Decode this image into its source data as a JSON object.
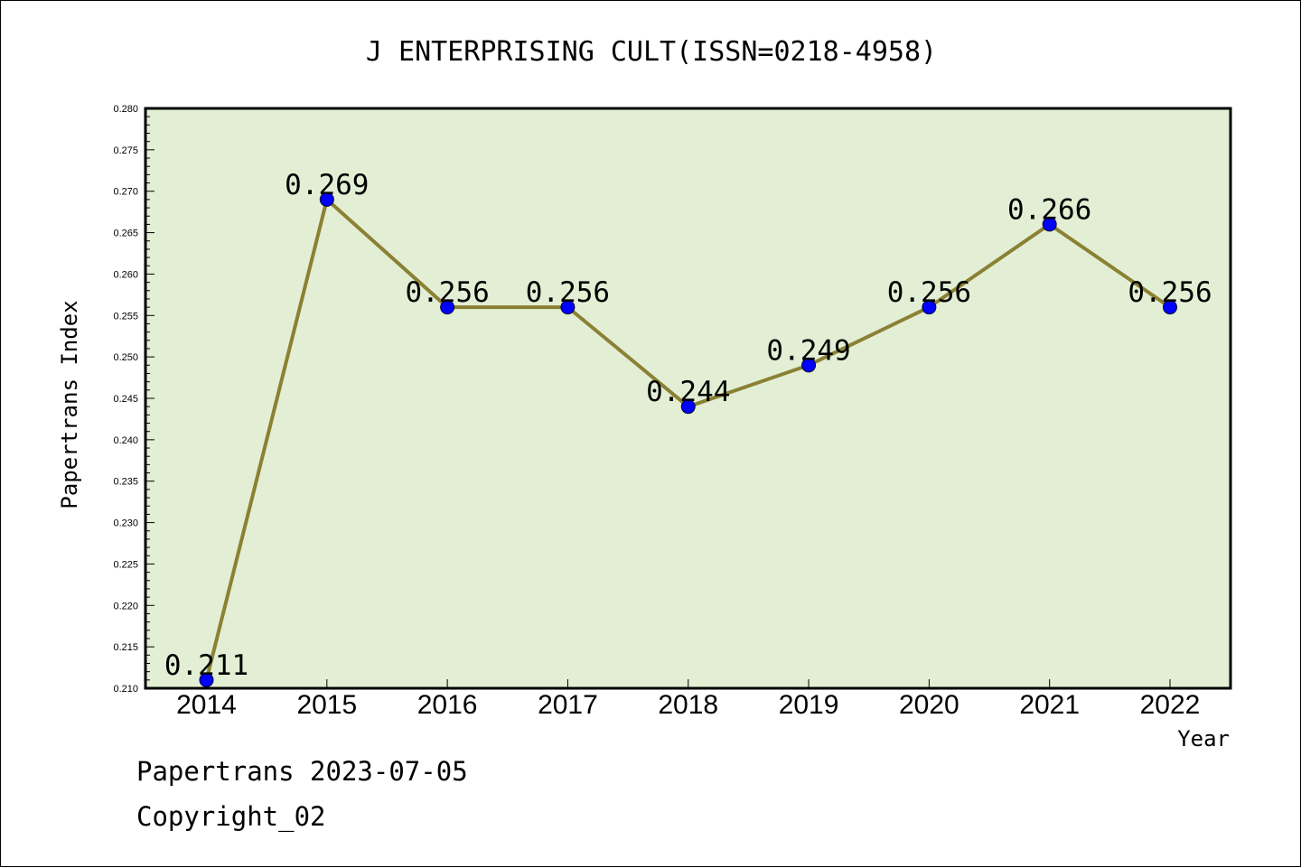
{
  "chart_data": {
    "type": "line",
    "title": "J ENTERPRISING CULT(ISSN=0218-4958)",
    "xlabel": "Year",
    "ylabel": "Papertrans Index",
    "categories": [
      "2014",
      "2015",
      "2016",
      "2017",
      "2018",
      "2019",
      "2020",
      "2021",
      "2022"
    ],
    "values": [
      0.211,
      0.269,
      0.256,
      0.256,
      0.244,
      0.249,
      0.256,
      0.266,
      0.256
    ],
    "data_labels": [
      "0.211",
      "0.269",
      "0.256",
      "0.256",
      "0.244",
      "0.249",
      "0.256",
      "0.266",
      "0.256"
    ],
    "ylim": [
      0.21,
      0.28
    ],
    "yticks": [
      "0.210",
      "0.215",
      "0.220",
      "0.225",
      "0.230",
      "0.235",
      "0.240",
      "0.245",
      "0.250",
      "0.255",
      "0.260",
      "0.265",
      "0.270",
      "0.275",
      "0.280"
    ],
    "grid": false,
    "colors": {
      "plot_background": "#e2efd4",
      "line": "#8b8034",
      "marker": "#0000ff"
    }
  },
  "footer": {
    "line1": "Papertrans 2023-07-05",
    "line2": "Copyright_02"
  }
}
